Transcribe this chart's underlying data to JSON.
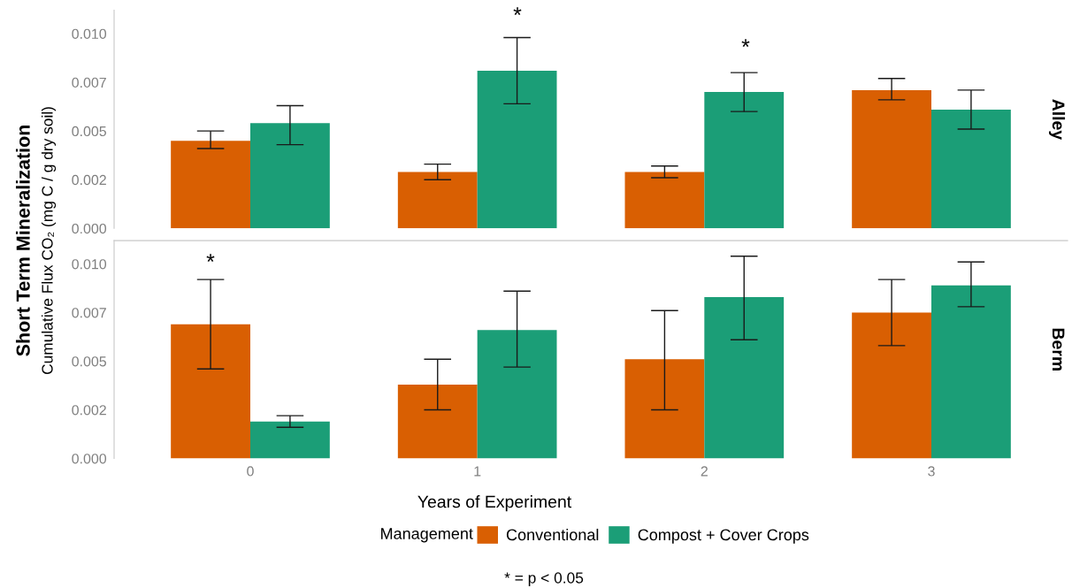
{
  "chart_data": [
    {
      "type": "bar",
      "title": "Alley",
      "ylabel": "Short Term Mineralization\nCumulative Flux CO₂ (mg C / g dry soil)",
      "categories": [
        "0",
        "1",
        "2",
        "3"
      ],
      "series": [
        {
          "color": "#d95f02",
          "values": [
            0.0045,
            0.0029,
            0.0029,
            0.0071
          ],
          "errors": [
            [
              0.0041,
              0.005
            ],
            [
              0.0025,
              0.0033
            ],
            [
              0.0026,
              0.0032
            ],
            [
              0.0066,
              0.0077
            ]
          ]
        },
        {
          "color": "#1b9e77",
          "values": [
            0.0054,
            0.0081,
            0.007,
            0.0061
          ],
          "errors": [
            [
              0.0043,
              0.0063
            ],
            [
              0.0064,
              0.0098
            ],
            [
              0.006,
              0.008
            ],
            [
              0.0051,
              0.0071
            ]
          ]
        }
      ],
      "ylim": [
        0,
        0.0112
      ],
      "yticks": [
        {
          "value": 0,
          "label": "0.000"
        },
        {
          "value": 0.0025,
          "label": "0.002"
        },
        0.005,
        {
          "value": 0.0075,
          "label": "0.007"
        },
        {
          "value": 0.01,
          "label": "0.010"
        }
      ],
      "tick_labels": "y",
      "annotations": [
        "*",
        "*"
      ]
    },
    {
      "type": "bar",
      "title": "Berm",
      "xlabel": "Years of Experiment",
      "categories": [
        "0",
        "1",
        "2",
        "3"
      ],
      "series": [
        {
          "name": "Conventional",
          "color": "#d95f02",
          "values": [
            0.0069,
            0.0038,
            0.0051,
            0.0075
          ],
          "errors": [
            [
              0.0046,
              0.0092
            ],
            [
              0.0025,
              0.0051
            ],
            [
              0.0025,
              0.0076
            ],
            [
              0.0058,
              0.0092
            ]
          ]
        },
        {
          "name": "Compost + Cover Crops",
          "color": "#1b9e77",
          "values": [
            0.0019,
            0.0066,
            0.0083,
            0.0089
          ],
          "errors": [
            [
              0.0016,
              0.0022
            ],
            [
              0.0047,
              0.0086
            ],
            [
              0.0061,
              0.0104
            ],
            [
              0.0078,
              0.0101
            ]
          ]
        }
      ],
      "ylim": [
        0,
        0.0112
      ],
      "yticks": [
        {
          "value": 0,
          "label": "0.000"
        },
        {
          "value": 0.0025,
          "label": "0.002"
        },
        0.005,
        {
          "value": 0.0075,
          "label": "0.007"
        },
        {
          "value": 0.01,
          "label": "0.010"
        }
      ],
      "legend": "bottom",
      "legend_title": "Management",
      "annotations": [
        "*",
        "* = p < 0.05"
      ]
    }
  ]
}
